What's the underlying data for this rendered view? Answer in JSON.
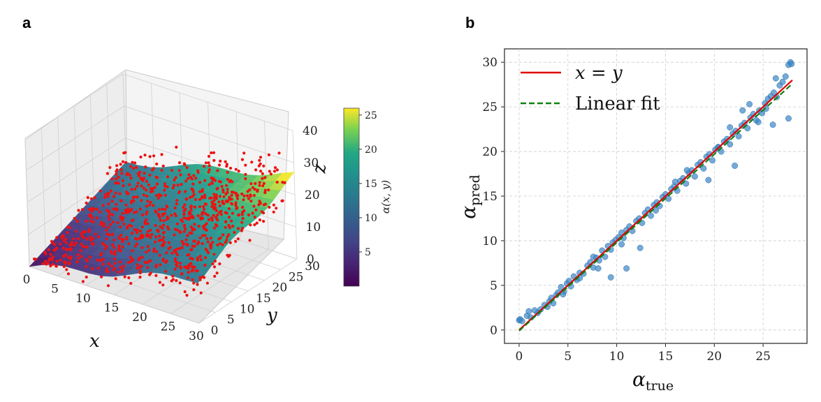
{
  "panels": {
    "a": "a",
    "b": "b"
  },
  "chart_data": [
    {
      "type": "scatter",
      "title": "",
      "note": "3D surface of alpha(x, y) with red scatter points",
      "xlabel": "x",
      "ylabel": "y",
      "zlabel": "z",
      "xlim": [
        0,
        30
      ],
      "ylim": [
        0,
        30
      ],
      "zlim": [
        0,
        40
      ],
      "xticks": [
        "0",
        "5",
        "10",
        "15",
        "20",
        "25",
        "30"
      ],
      "yticks": [
        "0",
        "5",
        "10",
        "15",
        "20",
        "25",
        "30"
      ],
      "zticks": [
        "0",
        "10",
        "20",
        "30",
        "40"
      ],
      "surface": "alpha(x,y) rising roughly linearly with x and y, from ~0 at origin to ~26 at (30,30)",
      "series": [
        {
          "name": "scatter",
          "color": "#ee1111",
          "approx_count": 900
        }
      ],
      "colorbar": {
        "label": "α(x, y)",
        "range": [
          0,
          26
        ],
        "ticks": [
          "5",
          "10",
          "15",
          "20",
          "25"
        ],
        "colormap": "viridis"
      }
    },
    {
      "type": "scatter",
      "title": "",
      "xlabel": "α",
      "xlabel_sub": "true",
      "ylabel": "α",
      "ylabel_sub": "pred",
      "xlim": [
        -1.5,
        29.5
      ],
      "ylim": [
        -1.5,
        31.5
      ],
      "xticks": [
        "0",
        "5",
        "10",
        "15",
        "20",
        "25"
      ],
      "yticks": [
        "0",
        "5",
        "10",
        "15",
        "20",
        "25",
        "30"
      ],
      "grid": true,
      "legend_position": "top-left",
      "lines": [
        {
          "name": "x = y",
          "style": "solid",
          "color": "#e00000",
          "x": [
            0,
            28
          ],
          "y": [
            0,
            28
          ]
        },
        {
          "name": "Linear fit",
          "style": "dashed",
          "color": "#108010",
          "x": [
            0,
            28
          ],
          "y": [
            -0.1,
            27.6
          ]
        }
      ],
      "series": [
        {
          "name": "points",
          "color": "#3a86c8",
          "x": [
            0.0,
            0.1,
            0.3,
            0.8,
            1.0,
            1.2,
            1.6,
            1.9,
            2.2,
            2.6,
            3.1,
            3.3,
            3.5,
            3.8,
            4.0,
            4.3,
            4.6,
            4.9,
            5.1,
            5.3,
            5.6,
            5.9,
            6.2,
            6.6,
            7.0,
            7.3,
            7.6,
            7.9,
            8.2,
            8.5,
            8.8,
            9.1,
            9.4,
            9.6,
            9.9,
            10.2,
            10.5,
            10.7,
            11.0,
            11.3,
            11.6,
            12.0,
            12.3,
            12.6,
            12.9,
            13.2,
            13.5,
            13.8,
            14.1,
            14.4,
            14.7,
            15.0,
            15.3,
            15.6,
            15.9,
            16.2,
            16.5,
            16.8,
            17.1,
            17.4,
            17.7,
            18.0,
            18.3,
            18.6,
            18.9,
            19.2,
            19.5,
            19.8,
            20.1,
            20.4,
            20.7,
            21.0,
            21.3,
            21.6,
            21.9,
            22.2,
            22.5,
            22.8,
            23.1,
            23.4,
            23.7,
            24.0,
            24.3,
            24.6,
            24.9,
            25.2,
            25.5,
            25.8,
            26.1,
            26.4,
            26.7,
            27.0,
            27.3,
            27.6,
            27.8,
            9.4,
            11.0,
            12.4,
            7.6,
            8.1,
            19.4,
            22.1,
            22.9,
            26.0,
            27.6,
            27.9,
            25.3,
            23.6,
            17.2,
            16.0,
            14.0,
            10.5,
            6.2,
            4.5,
            2.9,
            21.6,
            24.5,
            26.3,
            20.4
          ],
          "y": [
            1.1,
            1.2,
            1.0,
            1.6,
            2.1,
            1.4,
            2.2,
            1.9,
            2.3,
            2.8,
            3.2,
            3.6,
            3.0,
            3.9,
            4.2,
            4.8,
            4.3,
            5.2,
            5.5,
            4.9,
            6.0,
            5.6,
            6.4,
            6.3,
            7.2,
            7.6,
            7.0,
            8.1,
            7.8,
            8.9,
            8.2,
            9.4,
            9.0,
            9.8,
            10.1,
            10.4,
            10.9,
            10.3,
            11.2,
            11.6,
            11.1,
            12.2,
            12.5,
            12.0,
            13.1,
            13.5,
            12.8,
            14.0,
            14.3,
            13.9,
            14.9,
            15.2,
            14.7,
            15.8,
            16.1,
            15.6,
            16.7,
            17.0,
            16.4,
            17.6,
            17.9,
            17.2,
            18.5,
            18.8,
            18.1,
            19.4,
            19.7,
            19.0,
            20.2,
            20.5,
            20.0,
            21.1,
            21.4,
            20.8,
            22.0,
            22.3,
            21.7,
            22.9,
            23.2,
            22.6,
            23.8,
            24.2,
            23.5,
            24.6,
            24.3,
            25.4,
            25.9,
            26.2,
            26.6,
            26.1,
            27.4,
            27.8,
            28.4,
            29.7,
            30.0,
            5.9,
            6.9,
            9.2,
            8.2,
            6.9,
            16.8,
            18.4,
            24.6,
            23.0,
            23.7,
            29.8,
            24.8,
            25.3,
            17.9,
            16.6,
            13.4,
            9.6,
            5.8,
            4.0,
            2.6,
            22.7,
            23.3,
            28.2,
            20.5
          ]
        }
      ]
    }
  ]
}
